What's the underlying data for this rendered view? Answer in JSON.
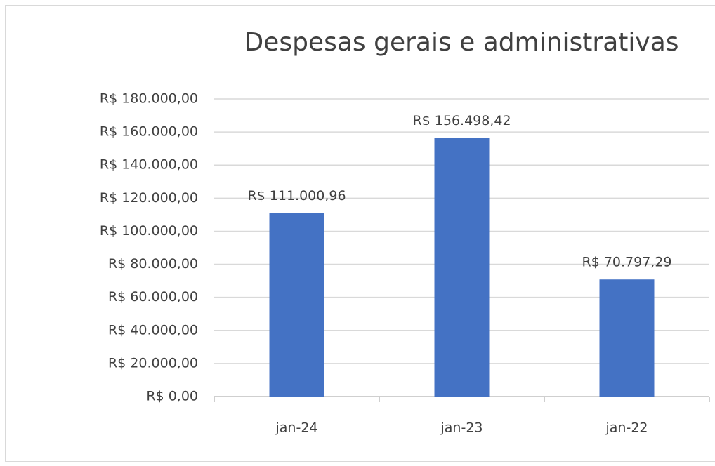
{
  "chart_data": {
    "type": "bar",
    "title": "Despesas gerais e administrativas",
    "categories": [
      "jan-24",
      "jan-23",
      "jan-22"
    ],
    "values": [
      111000.96,
      156498.42,
      70797.29
    ],
    "value_labels": [
      "R$ 111.000,96",
      "R$ 156.498,42",
      "R$ 70.797,29"
    ],
    "color": "#4472c4",
    "ylim": [
      0,
      180000
    ],
    "yticks": [
      {
        "value": 0,
        "label": "R$ 0,00"
      },
      {
        "value": 20000,
        "label": "R$ 20.000,00"
      },
      {
        "value": 40000,
        "label": "R$ 40.000,00"
      },
      {
        "value": 60000,
        "label": "R$ 60.000,00"
      },
      {
        "value": 80000,
        "label": "R$ 80.000,00"
      },
      {
        "value": 100000,
        "label": "R$ 100.000,00"
      },
      {
        "value": 120000,
        "label": "R$ 120.000,00"
      },
      {
        "value": 140000,
        "label": "R$ 140.000,00"
      },
      {
        "value": 160000,
        "label": "R$ 160.000,00"
      },
      {
        "value": 180000,
        "label": "R$ 180.000,00"
      }
    ],
    "grid": true
  }
}
